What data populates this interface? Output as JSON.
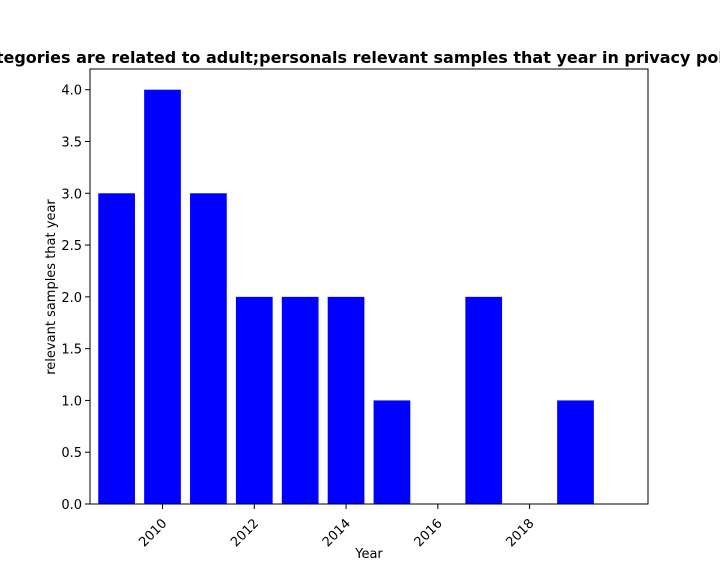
{
  "chart_data": {
    "type": "bar",
    "title": "Categories are related to adult;personals relevant samples that year in privacy policies",
    "xlabel": "Year",
    "ylabel": "relevant samples that year",
    "x": [
      2009,
      2010,
      2011,
      2012,
      2013,
      2014,
      2015,
      2016,
      2017,
      2018,
      2019
    ],
    "values": [
      3,
      4,
      3,
      2,
      2,
      2,
      1,
      0,
      2,
      0,
      1
    ],
    "xlim": [
      2008.42,
      2020.58
    ],
    "ylim": [
      0,
      4.2
    ],
    "xticks": [
      2010,
      2012,
      2014,
      2016,
      2018
    ],
    "yticks": [
      "0.0",
      "0.5",
      "1.0",
      "1.5",
      "2.0",
      "2.5",
      "3.0",
      "3.5",
      "4.0"
    ],
    "bar_color": "#0000ff",
    "grid": false
  }
}
